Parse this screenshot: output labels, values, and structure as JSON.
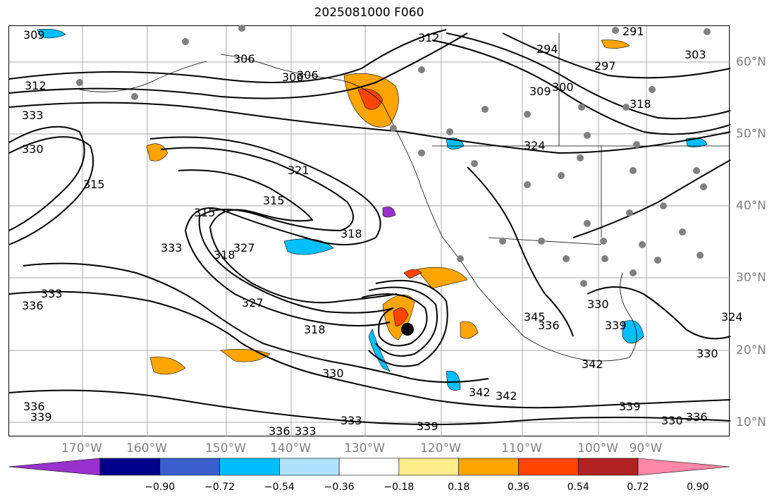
{
  "title": "2025081000 F060",
  "lat_labels": [
    "60°N",
    "50°N",
    "40°N",
    "30°N",
    "20°N",
    "10°N"
  ],
  "lon_labels": [
    "170°W",
    "160°W",
    "150°W",
    "140°W",
    "130°W",
    "120°W",
    "110°W",
    "100°W",
    "90°W"
  ],
  "colorbar": {
    "ticks": [
      "−0.90",
      "−0.72",
      "−0.54",
      "−0.36",
      "−0.18",
      "0.18",
      "0.36",
      "0.54",
      "0.72",
      "0.90"
    ],
    "colors": [
      "#9932cc",
      "#00008b",
      "#3a5fcd",
      "#00bfff",
      "#b0e2ff",
      "#ffffff",
      "#ffec8b",
      "#ffa500",
      "#ff4500",
      "#b22222",
      "#ff88aa"
    ]
  },
  "contour_labels": [
    "309",
    "312",
    "306",
    "306",
    "312",
    "306",
    "294",
    "291",
    "297",
    "303",
    "309",
    "300",
    "318",
    "324",
    "333",
    "330",
    "315",
    "327",
    "321",
    "315",
    "315",
    "318",
    "318",
    "333",
    "327",
    "336",
    "333",
    "318",
    "330",
    "333",
    "336",
    "339",
    "336",
    "333",
    "339",
    "342",
    "342",
    "330",
    "336",
    "339",
    "345",
    "336",
    "342",
    "330",
    "339",
    "330",
    "324"
  ],
  "accent": {
    "contour": "#000000",
    "grid": "#999999",
    "coast": "#000000",
    "station": "#808080",
    "storm": "#000000"
  }
}
